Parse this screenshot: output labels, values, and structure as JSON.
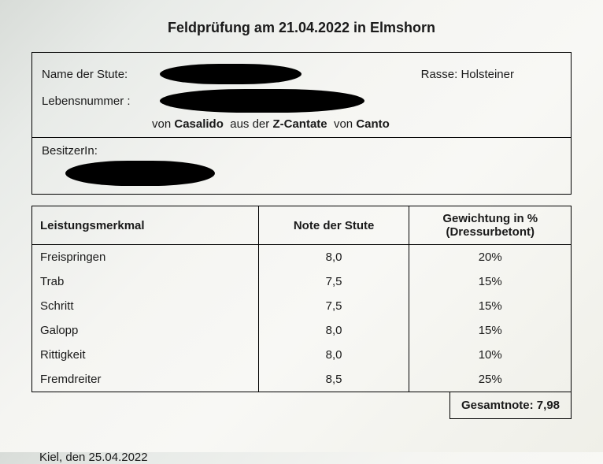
{
  "title": "Feldprüfung am 21.04.2022 in Elmshorn",
  "info": {
    "name_label": "Name der Stute:",
    "lebensnummer_label": "Lebensnummer :",
    "rasse_label": "Rasse: Holsteiner",
    "pedigree_von1": "von",
    "pedigree_sire": "Casalido",
    "pedigree_aus": "aus der",
    "pedigree_dam": "Z-Cantate",
    "pedigree_von2": "von",
    "pedigree_damsire": "Canto"
  },
  "owner": {
    "label": "BesitzerIn:"
  },
  "table": {
    "headers": {
      "merkmal": "Leistungsmerkmal",
      "note": "Note der Stute",
      "gewichtung_l1": "Gewichtung in %",
      "gewichtung_l2": "(Dressurbetont)"
    },
    "rows": [
      {
        "merkmal": "Freispringen",
        "note": "8,0",
        "gew": "20%"
      },
      {
        "merkmal": "Trab",
        "note": "7,5",
        "gew": "15%"
      },
      {
        "merkmal": "Schritt",
        "note": "7,5",
        "gew": "15%"
      },
      {
        "merkmal": "Galopp",
        "note": "8,0",
        "gew": "15%"
      },
      {
        "merkmal": "Rittigkeit",
        "note": "8,0",
        "gew": "10%"
      },
      {
        "merkmal": "Fremdreiter",
        "note": "8,5",
        "gew": "25%"
      }
    ]
  },
  "total": {
    "label": "Gesamtnote: 7,98"
  },
  "footer": {
    "text": "Kiel, den 25.04.2022"
  }
}
